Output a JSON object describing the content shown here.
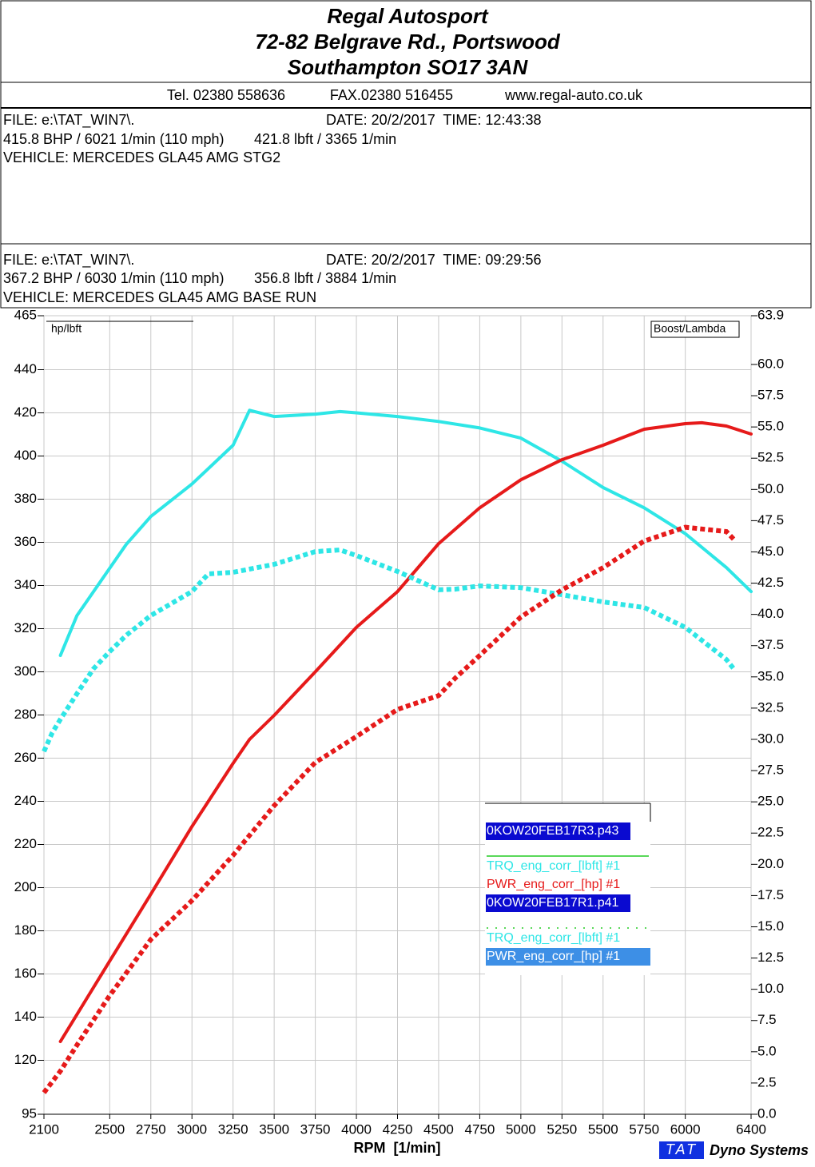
{
  "header": {
    "title_lines": [
      "Regal Autosport",
      "72-82 Belgrave Rd., Portswood",
      "Southampton SO17 3AN"
    ],
    "contact": [
      "Tel. 02380 558636",
      "FAX.02380 516455",
      "www.regal-auto.co.uk"
    ]
  },
  "runs": [
    {
      "file": "FILE: e:\\TAT_WIN7\\.",
      "date": "DATE: 20/2/2017  TIME: 12:43:38",
      "power": "415.8 BHP / 6021 1/min (110 mph)",
      "torque": "421.8 lbft / 3365 1/min",
      "vehicle": "VEHICLE: MERCEDES GLA45 AMG STG2"
    },
    {
      "file": "FILE: e:\\TAT_WIN7\\.",
      "date": "DATE: 20/2/2017  TIME: 09:29:56",
      "power": "367.2 BHP / 6030 1/min (110 mph)",
      "torque": "356.8 lbft / 3884 1/min",
      "vehicle": "VEHICLE: MERCEDES GLA45 AMG BASE RUN"
    }
  ],
  "footer": {
    "logo": "TAT",
    "brand": "Dyno Systems"
  },
  "chart_data": {
    "type": "line",
    "x_label": "RPM  [1/min]",
    "y_label": "hp/lbft",
    "y2_label": "Boost/Lambda",
    "xlim": [
      2100,
      6400
    ],
    "xticks": [
      2100,
      2500,
      2750,
      3000,
      3250,
      3500,
      3750,
      4000,
      4250,
      4500,
      4750,
      5000,
      5250,
      5500,
      5750,
      6000,
      6400
    ],
    "ylim": [
      95,
      465
    ],
    "yticks": [
      95,
      120,
      140,
      160,
      180,
      200,
      220,
      240,
      260,
      280,
      300,
      320,
      340,
      360,
      380,
      400,
      420,
      440,
      465
    ],
    "y2lim": [
      0,
      63.9
    ],
    "y2ticks": [
      {
        "value": 0,
        "label": "0.0"
      },
      2.5,
      {
        "value": 5,
        "label": "5.0"
      },
      7.5,
      {
        "value": 10,
        "label": "10.0"
      },
      12.5,
      {
        "value": 15,
        "label": "15.0"
      },
      17.5,
      {
        "value": 20,
        "label": "20.0"
      },
      22.5,
      {
        "value": 25,
        "label": "25.0"
      },
      27.5,
      {
        "value": 30,
        "label": "30.0"
      },
      32.5,
      {
        "value": 35,
        "label": "35.0"
      },
      37.5,
      {
        "value": 40,
        "label": "40.0"
      },
      42.5,
      {
        "value": 45,
        "label": "45.0"
      },
      47.5,
      {
        "value": 50,
        "label": "50.0"
      },
      52.5,
      {
        "value": 55,
        "label": "55.0"
      },
      57.5,
      {
        "value": 60,
        "label": "60.0"
      },
      63.9
    ],
    "grid": true,
    "legend_groups": [
      "0KOW20FEB17R3.p43",
      "0KOW20FEB17R1.p41"
    ],
    "series": [
      {
        "name": "TRQ_eng_corr_[lbft] #1",
        "color": "#2ee6e6",
        "style": "solid",
        "x": [
          2200,
          2300,
          2400,
          2500,
          2600,
          2750,
          3000,
          3250,
          3350,
          3500,
          3750,
          3900,
          4000,
          4250,
          4500,
          4750,
          5000,
          5250,
          5500,
          5750,
          6000,
          6250,
          6400
        ],
        "values": [
          307.6,
          326,
          337,
          348,
          359,
          372,
          387,
          405,
          421.2,
          418.3,
          419.4,
          420.6,
          420,
          418.3,
          416,
          413,
          408.3,
          397.6,
          385.4,
          376,
          364,
          348.3,
          337.2
        ]
      },
      {
        "name": "PWR_eng_corr_[hp] #1",
        "color": "#e61a1a",
        "style": "solid",
        "x": [
          2200,
          2500,
          2750,
          3000,
          3250,
          3350,
          3500,
          3750,
          4000,
          4250,
          4500,
          4750,
          5000,
          5250,
          5500,
          5750,
          6000,
          6100,
          6250,
          6400
        ],
        "values": [
          128.7,
          166,
          197,
          228.3,
          257.6,
          268.7,
          279.8,
          300,
          320.6,
          337.2,
          359.4,
          376,
          389,
          398.3,
          405,
          412.4,
          415,
          415.4,
          413.9,
          410.2
        ]
      },
      {
        "name": "TRQ_eng_corr_[lbft] #1",
        "color": "#2ee6e6",
        "style": "dotted",
        "x": [
          2100,
          2150,
          2200,
          2300,
          2400,
          2500,
          2600,
          2750,
          3000,
          3100,
          3250,
          3500,
          3750,
          3900,
          4000,
          4250,
          4500,
          4600,
          4750,
          5000,
          5250,
          5500,
          5750,
          6000,
          6250,
          6300
        ],
        "values": [
          263.1,
          271.7,
          278,
          289.8,
          301.3,
          309.4,
          316.9,
          326.1,
          337.2,
          345.4,
          346.1,
          349.8,
          355.7,
          356.5,
          353.9,
          346.5,
          338,
          338.3,
          339.8,
          339,
          335.7,
          332.4,
          329.8,
          320.6,
          305.7,
          300.9
        ]
      },
      {
        "name": "PWR_eng_corr_[hp] #1",
        "color": "#e61a1a",
        "style": "dotted",
        "x": [
          2100,
          2200,
          2300,
          2500,
          2750,
          3000,
          3250,
          3500,
          3750,
          4000,
          4250,
          4500,
          4600,
          4750,
          5000,
          5250,
          5500,
          5750,
          6000,
          6250,
          6300
        ],
        "values": [
          105,
          115,
          127,
          150,
          176,
          194,
          215,
          238,
          258,
          270,
          282.6,
          289,
          297,
          307.6,
          325.4,
          338,
          348.3,
          360.6,
          367,
          365,
          361
        ]
      }
    ]
  }
}
